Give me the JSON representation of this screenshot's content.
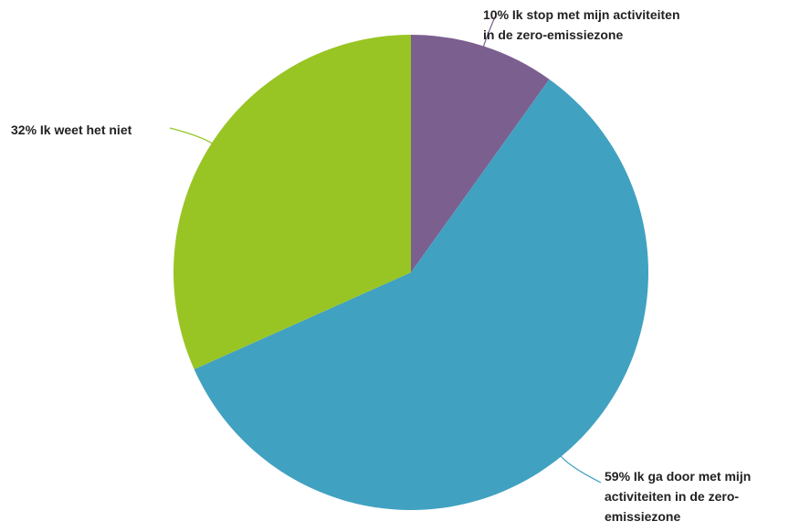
{
  "chart_data": {
    "type": "pie",
    "title": "",
    "slices": [
      {
        "value": 10,
        "label_lines": [
          "10% Ik stop met mijn activiteiten",
          "in de zero-emissiezone"
        ],
        "color": "#7b5f8f"
      },
      {
        "value": 59,
        "label_lines": [
          "59% Ik ga door met mijn",
          "activiteiten in de zero-",
          "emissiezone"
        ],
        "color": "#41a1c1"
      },
      {
        "value": 32,
        "label_lines": [
          "32% Ik weet het niet"
        ],
        "color": "#98c524"
      }
    ]
  }
}
